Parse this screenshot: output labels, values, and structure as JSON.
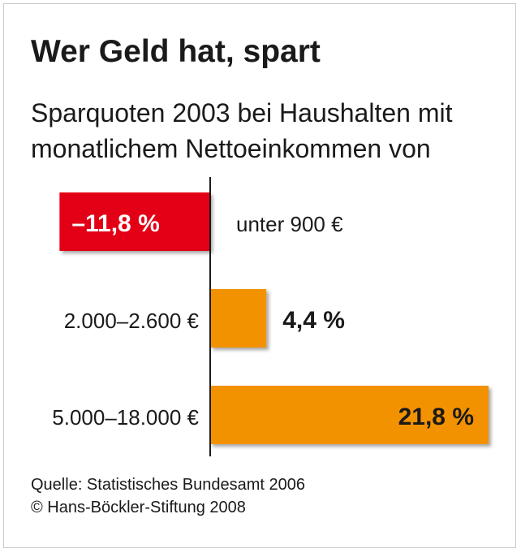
{
  "title": "Wer Geld hat, spart",
  "subtitle_lines": [
    "Sparquoten 2003 bei Haushalten mit",
    "monatlichem Nettoeinkommen von"
  ],
  "chart_data": {
    "type": "bar",
    "orientation": "horizontal",
    "title": "Wer Geld hat, spart",
    "subtitle": "Sparquoten 2003 bei Haushalten mit monatlichem Nettoeinkommen von",
    "unit": "%",
    "categories": [
      "unter 900 €",
      "2.000–2.600 €",
      "5.000–18.000 €"
    ],
    "values": [
      -11.8,
      4.4,
      21.8
    ],
    "value_labels": [
      "–11,8 %",
      "4,4 %",
      "21,8 %"
    ],
    "colors": [
      "#e30613",
      "#f39200",
      "#f39200"
    ],
    "xlabel": "",
    "ylabel": "",
    "grid": false
  },
  "source": {
    "line1": "Quelle: Statistisches Bundesamt 2006",
    "line2": "© Hans-Böckler-Stiftung 2008"
  }
}
